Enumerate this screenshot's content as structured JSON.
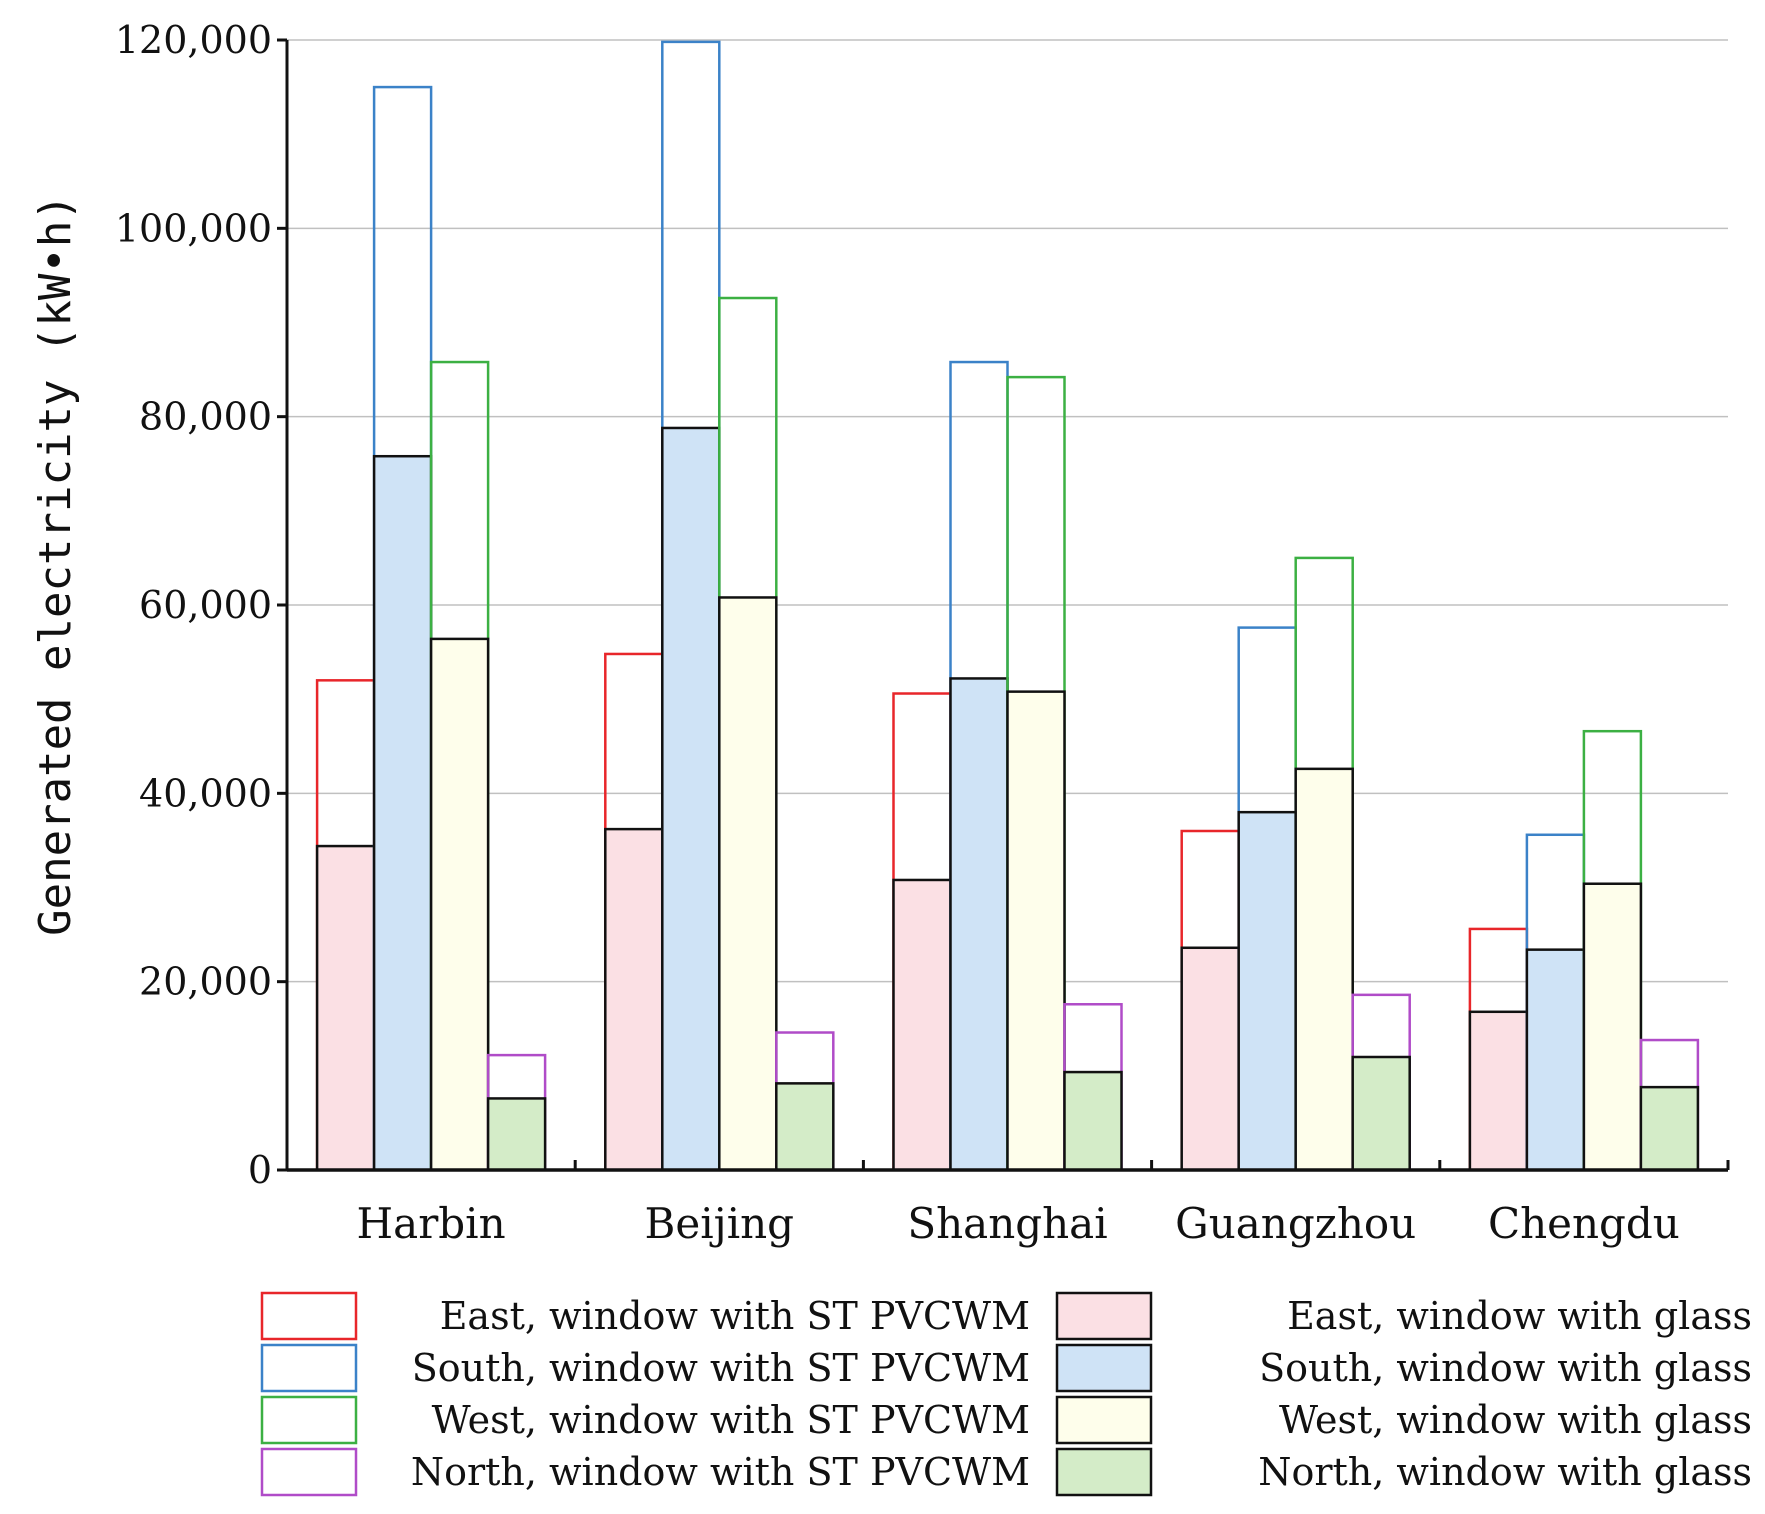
{
  "chart_data": {
    "type": "bar",
    "ylabel": "Generated electricity (kW•h)",
    "xlabel": "",
    "ylim": [
      0,
      120000
    ],
    "yticks": [
      0,
      20000,
      40000,
      60000,
      80000,
      100000,
      120000
    ],
    "ytick_labels": [
      "0",
      "20,000",
      "40,000",
      "60,000",
      "80,000",
      "100,000",
      "120,000"
    ],
    "grid": "horizontal",
    "legend_position": "bottom",
    "categories": [
      "Harbin",
      "Beijing",
      "Shanghai",
      "Guangzhou",
      "Chengdu"
    ],
    "series": [
      {
        "name": "East, window with ST PVCWM",
        "values": [
          52000,
          54800,
          50600,
          36000,
          25600
        ],
        "style": "outline",
        "color": "#e8262a"
      },
      {
        "name": "South, window with ST PVCWM",
        "values": [
          115000,
          119800,
          85800,
          57600,
          35600
        ],
        "style": "outline",
        "color": "#3b82c8"
      },
      {
        "name": "West, window with ST PVCWM",
        "values": [
          85800,
          92600,
          84200,
          65000,
          46600
        ],
        "style": "outline",
        "color": "#3cb043"
      },
      {
        "name": "North, window with ST PVCWM",
        "values": [
          12200,
          14600,
          17600,
          18600,
          13800
        ],
        "style": "outline",
        "color": "#b04cc8"
      },
      {
        "name": "East, window with glass",
        "values": [
          34400,
          36200,
          30800,
          23600,
          16800
        ],
        "style": "filled",
        "color": "#fbe0e4"
      },
      {
        "name": "South, window with glass",
        "values": [
          75800,
          78800,
          52200,
          38000,
          23400
        ],
        "style": "filled",
        "color": "#cfe3f6"
      },
      {
        "name": "West, window with glass",
        "values": [
          56400,
          60800,
          50800,
          42600,
          30400
        ],
        "style": "filled",
        "color": "#fefeeb"
      },
      {
        "name": "North, window with glass",
        "values": [
          7600,
          9200,
          10400,
          12000,
          8800
        ],
        "style": "filled",
        "color": "#d4ecc8"
      }
    ]
  }
}
